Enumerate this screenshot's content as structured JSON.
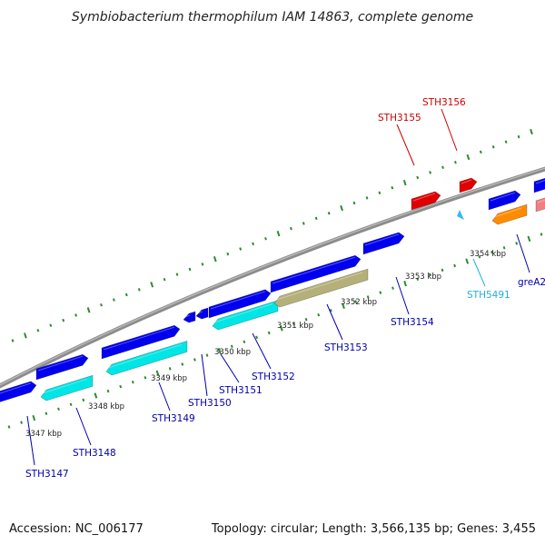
{
  "title": "Symbiobacterium thermophilum IAM 14863, complete genome",
  "footer": {
    "accession": "Accession: NC_006177",
    "summary": "Topology: circular; Length: 3,566,135 bp; Genes: 3,455"
  },
  "colors": {
    "backbone": "#8c8c8c",
    "dots": "#2e8b2e",
    "forward_gene": "#0000ee",
    "reverse_gene": "#00e5e5",
    "rna_gene": "#e00000",
    "special_gene": "#b5b07a",
    "orange_gene": "#ff8c00",
    "pink_gene": "#f08080",
    "trna": "#33bbee",
    "label_blue": "#0000aa",
    "label_red": "#cc0000",
    "label_cyan": "#20b0e0"
  },
  "ticks": [
    {
      "label": "3347 kbp"
    },
    {
      "label": "3348 kbp"
    },
    {
      "label": "3349 kbp"
    },
    {
      "label": "3350 kbp"
    },
    {
      "label": "3351 kbp"
    },
    {
      "label": "3352 kbp"
    },
    {
      "label": "3353 kbp"
    },
    {
      "label": "3354 kbp"
    }
  ],
  "labels": [
    {
      "text": "STH3147",
      "color": "blue"
    },
    {
      "text": "STH3148",
      "color": "blue"
    },
    {
      "text": "STH3149",
      "color": "blue"
    },
    {
      "text": "STH3150",
      "color": "blue"
    },
    {
      "text": "STH3151",
      "color": "blue"
    },
    {
      "text": "STH3152",
      "color": "blue"
    },
    {
      "text": "STH3153",
      "color": "blue"
    },
    {
      "text": "STH3154",
      "color": "blue"
    },
    {
      "text": "STH3155",
      "color": "red"
    },
    {
      "text": "STH3156",
      "color": "red"
    },
    {
      "text": "STH5491",
      "color": "cyan"
    },
    {
      "text": "greA2",
      "color": "blue"
    }
  ]
}
